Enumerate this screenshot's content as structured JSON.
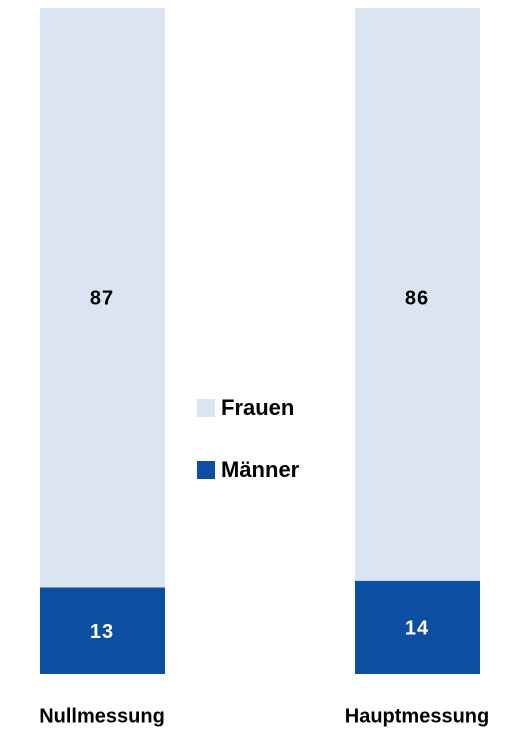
{
  "chart_data": {
    "type": "stacked_bar",
    "categories": [
      "Nullmessung",
      "Hauptmessung"
    ],
    "series": [
      {
        "name": "Männer",
        "color": "#0b4ea2",
        "values": [
          13,
          14
        ]
      },
      {
        "name": "Frauen",
        "color": "#dbe5f1",
        "values": [
          87,
          86
        ]
      }
    ],
    "ylim": [
      0,
      100
    ]
  }
}
